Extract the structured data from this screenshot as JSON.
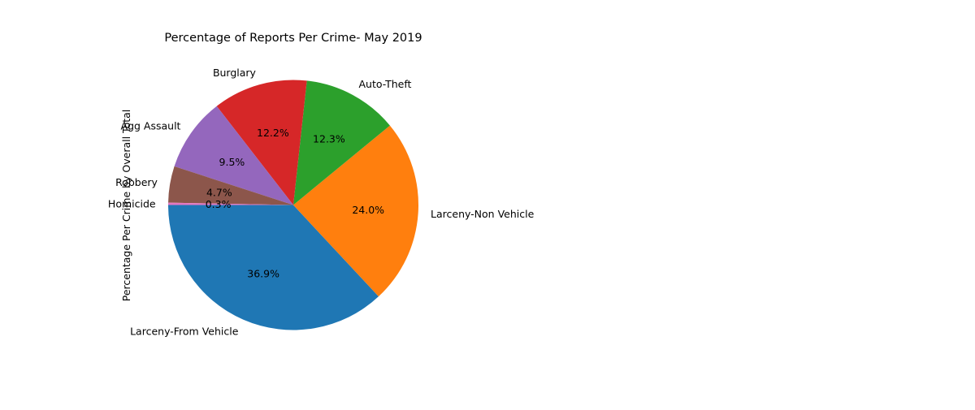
{
  "chart_data": {
    "type": "pie",
    "title": "Percentage of Reports Per Crime- May 2019",
    "ylabel": "Percentage Per Crime by Overall Total",
    "slices": [
      {
        "label": "Larceny-From Vehicle",
        "value": 36.9,
        "pct_label": "36.9%",
        "color": "#1f77b4"
      },
      {
        "label": "Larceny-Non Vehicle",
        "value": 24.0,
        "pct_label": "24.0%",
        "color": "#ff7f0e"
      },
      {
        "label": "Auto-Theft",
        "value": 12.3,
        "pct_label": "12.3%",
        "color": "#2ca02c"
      },
      {
        "label": "Burglary",
        "value": 12.2,
        "pct_label": "12.2%",
        "color": "#d62728"
      },
      {
        "label": "Agg Assault",
        "value": 9.5,
        "pct_label": "9.5%",
        "color": "#9467bd"
      },
      {
        "label": "Robbery",
        "value": 4.7,
        "pct_label": "4.7%",
        "color": "#8c564b"
      },
      {
        "label": "Homicide",
        "value": 0.3,
        "pct_label": "0.3%",
        "color": "#e377c2"
      }
    ]
  }
}
